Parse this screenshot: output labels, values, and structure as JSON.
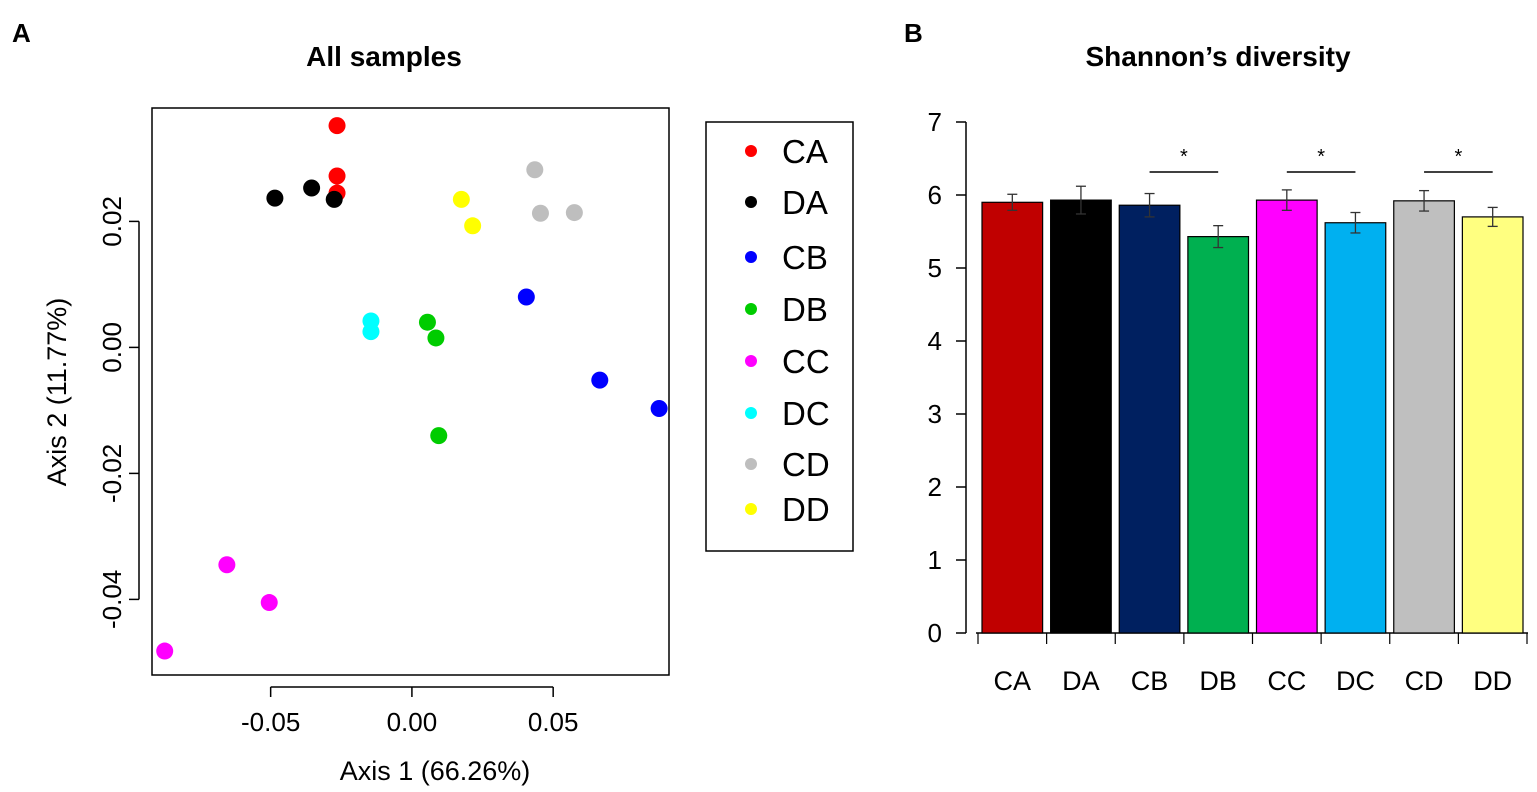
{
  "panels": {
    "a_letter": "A",
    "b_letter": "B"
  },
  "chart_data": [
    {
      "type": "scatter",
      "title": "All samples",
      "xlabel": "Axis 1 (66.26%)",
      "ylabel": "Axis 2 (11.77%)",
      "xlim": [
        -0.092,
        0.091
      ],
      "ylim": [
        -0.052,
        0.038
      ],
      "xticks": [
        -0.05,
        0.0,
        0.05
      ],
      "xtick_labels": [
        "-0.05",
        "0.00",
        "0.05"
      ],
      "yticks": [
        -0.04,
        -0.02,
        0.0,
        0.02
      ],
      "ytick_labels": [
        "-0.04",
        "-0.02",
        "0.00",
        "0.02"
      ],
      "legend_position": "right",
      "series": [
        {
          "name": "CA",
          "color": "#ff0000",
          "points": [
            [
              -0.0265,
              0.0352
            ],
            [
              -0.0265,
              0.0272
            ],
            [
              -0.0265,
              0.0245
            ]
          ]
        },
        {
          "name": "DA",
          "color": "#000000",
          "points": [
            [
              -0.0485,
              0.0237
            ],
            [
              -0.0355,
              0.0253
            ],
            [
              -0.0275,
              0.0235
            ]
          ]
        },
        {
          "name": "CB",
          "color": "#0000ff",
          "points": [
            [
              0.0405,
              0.008
            ],
            [
              0.0665,
              -0.0052
            ],
            [
              0.0875,
              -0.0097
            ]
          ]
        },
        {
          "name": "DB",
          "color": "#00cc00",
          "points": [
            [
              0.0055,
              0.004
            ],
            [
              0.0085,
              0.0015
            ],
            [
              0.0095,
              -0.014
            ]
          ]
        },
        {
          "name": "CC",
          "color": "#ff00ff",
          "points": [
            [
              -0.0655,
              -0.0345
            ],
            [
              -0.0505,
              -0.0405
            ],
            [
              -0.0875,
              -0.0482
            ]
          ]
        },
        {
          "name": "DC",
          "color": "#00ffff",
          "points": [
            [
              -0.0145,
              0.0042
            ],
            [
              -0.0145,
              0.0025
            ]
          ]
        },
        {
          "name": "CD",
          "color": "#bebebe",
          "points": [
            [
              0.0435,
              0.0282
            ],
            [
              0.0455,
              0.0213
            ],
            [
              0.0575,
              0.0214
            ]
          ]
        },
        {
          "name": "DD",
          "color": "#ffff00",
          "points": [
            [
              0.0175,
              0.0235
            ],
            [
              0.0215,
              0.0193
            ]
          ]
        }
      ]
    },
    {
      "type": "bar",
      "title": "Shannon’s diversity",
      "categories": [
        "CA",
        "DA",
        "CB",
        "DB",
        "CC",
        "DC",
        "CD",
        "DD"
      ],
      "values": [
        5.9,
        5.93,
        5.86,
        5.43,
        5.93,
        5.62,
        5.92,
        5.7
      ],
      "errors": [
        0.11,
        0.19,
        0.16,
        0.15,
        0.14,
        0.14,
        0.14,
        0.13
      ],
      "colors": [
        "#c00000",
        "#000000",
        "#002060",
        "#00b050",
        "#ff00ff",
        "#00b0f0",
        "#bfbfbf",
        "#ffff80"
      ],
      "ylim": [
        0,
        7
      ],
      "yticks": [
        0,
        1,
        2,
        3,
        4,
        5,
        6,
        7
      ],
      "ytick_labels": [
        "0",
        "1",
        "2",
        "3",
        "4",
        "5",
        "6",
        "7"
      ],
      "significance": [
        {
          "between": [
            2,
            3
          ],
          "label": "*"
        },
        {
          "between": [
            4,
            5
          ],
          "label": "*"
        },
        {
          "between": [
            6,
            7
          ],
          "label": "*"
        }
      ]
    }
  ]
}
